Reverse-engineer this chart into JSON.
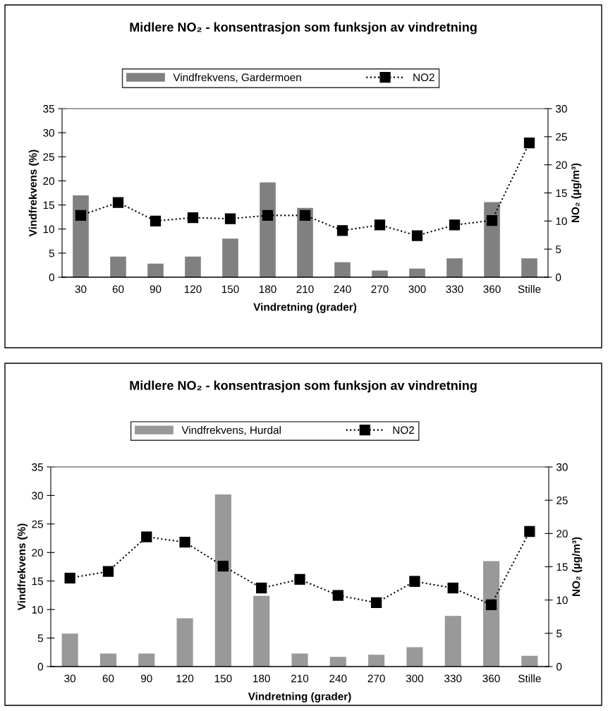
{
  "chart_data": [
    {
      "type": "bar",
      "title": "Midlere NO₂ - konsentrasjon som funksjon av vindretning",
      "xlabel": "Vindretning (grader)",
      "ylabel": "Vindfrekvens (%)",
      "y2label": "NO₂ (µg/m³)",
      "categories": [
        "30",
        "60",
        "90",
        "120",
        "150",
        "180",
        "210",
        "240",
        "270",
        "300",
        "330",
        "360",
        "Stille"
      ],
      "series": [
        {
          "name": "Vindfrekvens, Gardermoen",
          "color": "#808080",
          "values": [
            16.9,
            4.2,
            2.7,
            4.2,
            7.9,
            19.6,
            14.3,
            3.0,
            1.3,
            1.7,
            3.8,
            15.5,
            3.8
          ]
        },
        {
          "name": "NO2",
          "type": "line",
          "axis": "y2",
          "color": "#000000",
          "marker": "square",
          "line_style": "dotted",
          "values": [
            11.0,
            13.3,
            10.0,
            10.6,
            10.4,
            11.0,
            11.0,
            8.3,
            9.3,
            7.4,
            9.3,
            10.1,
            23.9
          ]
        }
      ],
      "ylim": [
        0,
        35
      ],
      "yticks": [
        0,
        5,
        10,
        15,
        20,
        25,
        30,
        35
      ],
      "y2lim": [
        0,
        30
      ],
      "y2ticks": [
        0,
        5,
        10,
        15,
        20,
        25,
        30
      ],
      "grid": false,
      "legend": "top"
    },
    {
      "type": "bar",
      "title": "Midlere NO₂ - konsentrasjon som funksjon av vindretning",
      "xlabel": "Vindretning (grader)",
      "ylabel": "Vindfrekvens (%)",
      "y2label": "NO₂ (µg/m³)",
      "categories": [
        "30",
        "60",
        "90",
        "120",
        "150",
        "180",
        "210",
        "240",
        "270",
        "300",
        "330",
        "360",
        "Stille"
      ],
      "series": [
        {
          "name": "Vindfrekvens, Hurdal",
          "color": "#999999",
          "values": [
            5.7,
            2.2,
            2.2,
            8.4,
            30.1,
            12.3,
            2.2,
            1.6,
            2.0,
            3.3,
            8.8,
            18.4,
            1.8
          ]
        },
        {
          "name": "NO2",
          "type": "line",
          "axis": "y2",
          "color": "#000000",
          "marker": "square",
          "line_style": "dotted",
          "values": [
            13.3,
            14.3,
            19.5,
            18.7,
            15.1,
            11.8,
            13.1,
            10.7,
            9.6,
            12.8,
            11.8,
            9.3,
            20.3
          ]
        }
      ],
      "ylim": [
        0,
        35
      ],
      "yticks": [
        0,
        5,
        10,
        15,
        20,
        25,
        30,
        35
      ],
      "y2lim": [
        0,
        30
      ],
      "y2ticks": [
        0,
        5,
        10,
        15,
        20,
        25,
        30
      ],
      "grid": false,
      "legend": "top"
    }
  ]
}
